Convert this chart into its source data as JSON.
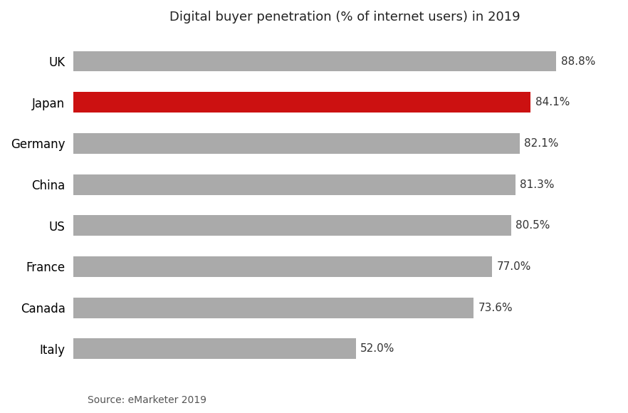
{
  "title": "Digital buyer penetration (% of internet users) in 2019",
  "categories": [
    "UK",
    "Japan",
    "Germany",
    "China",
    "US",
    "France",
    "Canada",
    "Italy"
  ],
  "values": [
    88.8,
    84.1,
    82.1,
    81.3,
    80.5,
    77.0,
    73.6,
    52.0
  ],
  "bar_colors": [
    "#aaaaaa",
    "#cc1111",
    "#aaaaaa",
    "#aaaaaa",
    "#aaaaaa",
    "#aaaaaa",
    "#aaaaaa",
    "#aaaaaa"
  ],
  "label_format": [
    "88.8%",
    "84.1%",
    "82.1%",
    "81.3%",
    "80.5%",
    "77.0%",
    "73.6%",
    "52.0%"
  ],
  "source_text": "Source: eMarketer 2019",
  "xlim": [
    0,
    100
  ],
  "title_fontsize": 13,
  "label_fontsize": 11,
  "tick_fontsize": 12,
  "source_fontsize": 10,
  "background_color": "#ffffff",
  "bar_height": 0.5
}
